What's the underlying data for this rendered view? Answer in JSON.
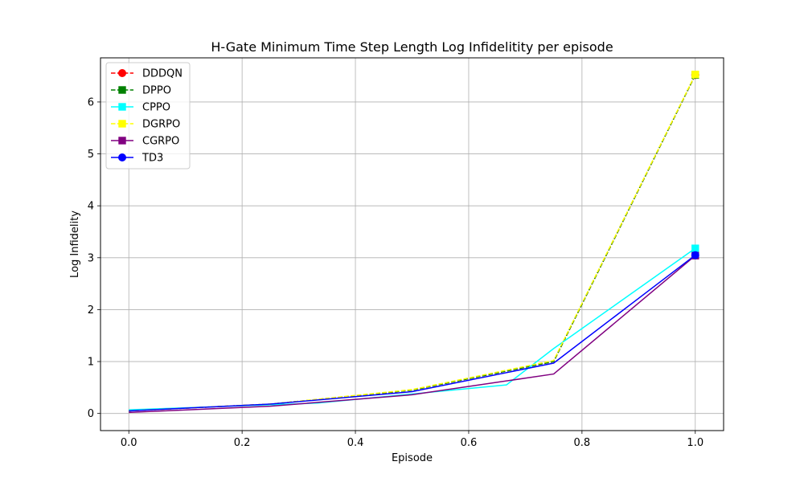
{
  "chart_data": {
    "type": "line",
    "title": "H-Gate Minimum Time Step Length Log Infidelitity per episode",
    "xlabel": "Episode",
    "ylabel": "Log Infidelity",
    "xlim": [
      -0.05,
      1.05
    ],
    "ylim": [
      -0.33,
      6.85
    ],
    "xticks": [
      0.0,
      0.2,
      0.4,
      0.6,
      0.8,
      1.0
    ],
    "xtick_labels": [
      "0.0",
      "0.2",
      "0.4",
      "0.6",
      "0.8",
      "1.0"
    ],
    "yticks": [
      0,
      1,
      2,
      3,
      4,
      5,
      6
    ],
    "ytick_labels": [
      "0",
      "1",
      "2",
      "3",
      "4",
      "5",
      "6"
    ],
    "grid": true,
    "legend_position": "top-left",
    "series": [
      {
        "name": "DDDQN",
        "color": "#ff0000",
        "linestyle": "dashed",
        "marker": "circle",
        "x": [
          0.0,
          0.25,
          0.5,
          0.75,
          1.0
        ],
        "y": [
          0.05,
          0.18,
          0.45,
          1.0,
          6.52
        ]
      },
      {
        "name": "DPPO",
        "color": "#008000",
        "linestyle": "dashed",
        "marker": "square",
        "x": [
          0.0,
          0.25,
          0.5,
          0.75,
          1.0
        ],
        "y": [
          0.05,
          0.18,
          0.45,
          1.0,
          6.52
        ]
      },
      {
        "name": "CPPO",
        "color": "#00ffff",
        "linestyle": "solid",
        "marker": "square",
        "x": [
          0.0,
          0.3333,
          0.6667,
          0.75,
          1.0
        ],
        "y": [
          0.07,
          0.2,
          0.55,
          1.25,
          3.18
        ]
      },
      {
        "name": "DGRPO",
        "color": "#ffff00",
        "linestyle": "dashed",
        "marker": "square",
        "x": [
          0.0,
          0.25,
          0.5,
          0.75,
          1.0
        ],
        "y": [
          0.05,
          0.18,
          0.46,
          1.02,
          6.53
        ]
      },
      {
        "name": "CGRPO",
        "color": "#800080",
        "linestyle": "solid",
        "marker": "square",
        "x": [
          0.0,
          0.25,
          0.5,
          0.75,
          1.0
        ],
        "y": [
          0.02,
          0.14,
          0.36,
          0.76,
          3.04
        ]
      },
      {
        "name": "TD3",
        "color": "#0000ff",
        "linestyle": "solid",
        "marker": "circle",
        "x": [
          0.0,
          0.25,
          0.5,
          0.75,
          1.0
        ],
        "y": [
          0.05,
          0.18,
          0.42,
          0.97,
          3.05
        ]
      }
    ]
  }
}
